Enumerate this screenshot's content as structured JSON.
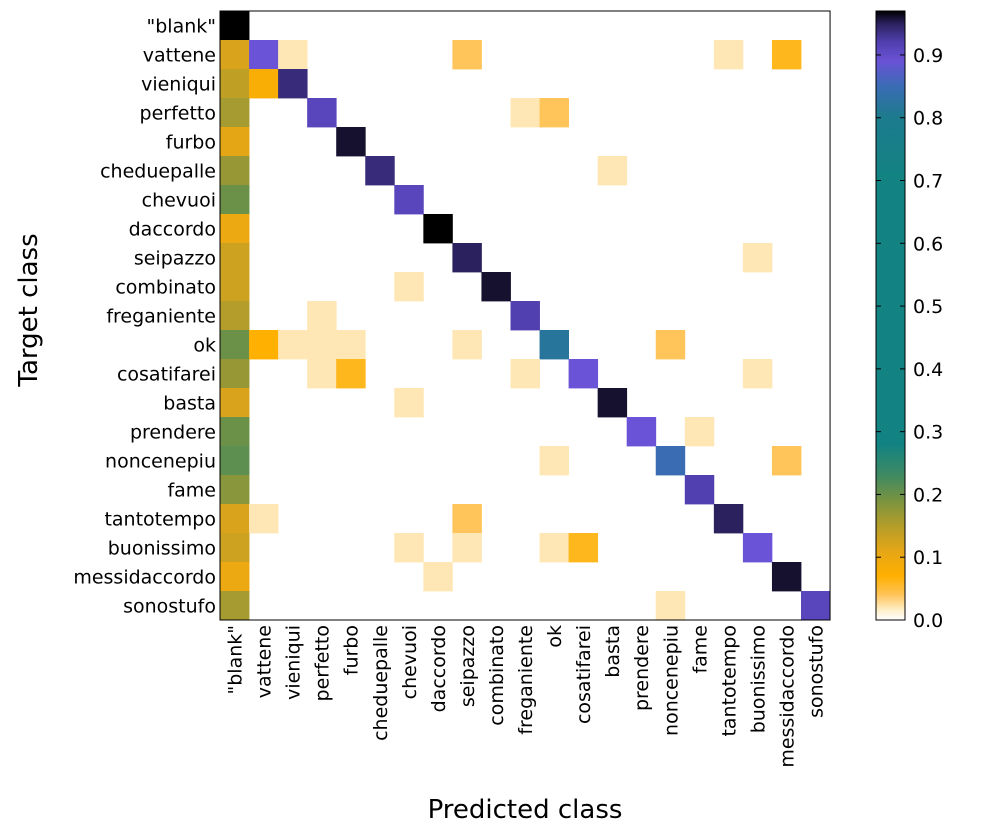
{
  "chart_data": {
    "type": "heatmap",
    "title": "",
    "xlabel": "Predicted class",
    "ylabel": "Target class",
    "categories": [
      "\"blank\"",
      "vattene",
      "vieniqui",
      "perfetto",
      "furbo",
      "cheduepalle",
      "chevuoi",
      "daccordo",
      "seipazzo",
      "combinato",
      "freganiente",
      "ok",
      "cosatifarei",
      "basta",
      "prendere",
      "noncenepiu",
      "fame",
      "tantotempo",
      "buonissimo",
      "messidaccordo",
      "sonostufo"
    ],
    "colorbar": {
      "range": [
        0.0,
        0.97
      ],
      "ticks": [
        0.0,
        0.1,
        0.2,
        0.3,
        0.4,
        0.5,
        0.6,
        0.7,
        0.8,
        0.9
      ],
      "tick_labels": [
        "0.0",
        "0.1",
        "0.2",
        "0.3",
        "0.4",
        "0.5",
        "0.6",
        "0.7",
        "0.8",
        "0.9"
      ],
      "placement": "right"
    },
    "colormap_stops": [
      {
        "v": 0.0,
        "color": "#ffffff"
      },
      {
        "v": 0.015,
        "color": "#fff0cc"
      },
      {
        "v": 0.04,
        "color": "#ffc45a"
      },
      {
        "v": 0.07,
        "color": "#ffb000"
      },
      {
        "v": 0.11,
        "color": "#e5a616"
      },
      {
        "v": 0.15,
        "color": "#b49d2a"
      },
      {
        "v": 0.19,
        "color": "#7a9340"
      },
      {
        "v": 0.23,
        "color": "#3f8a62"
      },
      {
        "v": 0.28,
        "color": "#128382"
      },
      {
        "v": 0.7,
        "color": "#128382"
      },
      {
        "v": 0.8,
        "color": "#1c7b8c"
      },
      {
        "v": 0.85,
        "color": "#3a6cb4"
      },
      {
        "v": 0.89,
        "color": "#6a53d6"
      },
      {
        "v": 0.92,
        "color": "#5140b0"
      },
      {
        "v": 0.95,
        "color": "#2b215e"
      },
      {
        "v": 0.97,
        "color": "#000000"
      }
    ],
    "matrix": [
      [
        0.97,
        0,
        0,
        0,
        0,
        0,
        0,
        0,
        0,
        0,
        0,
        0,
        0,
        0,
        0,
        0,
        0,
        0,
        0,
        0,
        0
      ],
      [
        0.12,
        0.89,
        0.02,
        0,
        0,
        0,
        0,
        0,
        0.04,
        0,
        0,
        0,
        0,
        0,
        0,
        0,
        0,
        0.02,
        0,
        0.06,
        0
      ],
      [
        0.14,
        0.08,
        0.94,
        0,
        0,
        0,
        0,
        0,
        0,
        0,
        0,
        0,
        0,
        0,
        0,
        0,
        0,
        0,
        0,
        0,
        0
      ],
      [
        0.16,
        0,
        0,
        0.91,
        0,
        0,
        0,
        0,
        0,
        0,
        0.02,
        0.04,
        0,
        0,
        0,
        0,
        0,
        0,
        0,
        0,
        0
      ],
      [
        0.11,
        0,
        0,
        0,
        0.96,
        0,
        0,
        0,
        0,
        0,
        0,
        0,
        0,
        0,
        0,
        0,
        0,
        0,
        0,
        0,
        0
      ],
      [
        0.17,
        0,
        0,
        0,
        0,
        0.94,
        0,
        0,
        0,
        0,
        0,
        0,
        0,
        0.02,
        0,
        0,
        0,
        0,
        0,
        0,
        0
      ],
      [
        0.2,
        0,
        0,
        0,
        0,
        0,
        0.91,
        0,
        0,
        0,
        0,
        0,
        0,
        0,
        0,
        0,
        0,
        0,
        0,
        0,
        0
      ],
      [
        0.1,
        0,
        0,
        0,
        0,
        0,
        0,
        0.97,
        0,
        0,
        0,
        0,
        0,
        0,
        0,
        0,
        0,
        0,
        0,
        0,
        0
      ],
      [
        0.13,
        0,
        0,
        0,
        0,
        0,
        0,
        0,
        0.95,
        0,
        0,
        0,
        0,
        0,
        0,
        0,
        0,
        0,
        0.02,
        0,
        0
      ],
      [
        0.13,
        0,
        0,
        0,
        0,
        0,
        0.02,
        0,
        0,
        0.96,
        0,
        0,
        0,
        0,
        0,
        0,
        0,
        0,
        0,
        0,
        0
      ],
      [
        0.15,
        0,
        0,
        0.02,
        0,
        0,
        0,
        0,
        0,
        0,
        0.92,
        0,
        0,
        0,
        0,
        0,
        0,
        0,
        0,
        0,
        0
      ],
      [
        0.2,
        0.07,
        0.02,
        0.02,
        0.02,
        0,
        0,
        0,
        0.02,
        0,
        0,
        0.82,
        0,
        0,
        0,
        0.04,
        0,
        0,
        0,
        0,
        0
      ],
      [
        0.17,
        0,
        0,
        0.02,
        0.06,
        0,
        0,
        0,
        0,
        0,
        0.02,
        0,
        0.89,
        0,
        0,
        0,
        0,
        0,
        0.02,
        0,
        0
      ],
      [
        0.12,
        0,
        0,
        0,
        0,
        0,
        0.02,
        0,
        0,
        0,
        0,
        0,
        0,
        0.96,
        0,
        0,
        0,
        0,
        0,
        0,
        0
      ],
      [
        0.2,
        0,
        0,
        0,
        0,
        0,
        0,
        0,
        0,
        0,
        0,
        0,
        0,
        0,
        0.89,
        0,
        0.02,
        0,
        0,
        0,
        0
      ],
      [
        0.21,
        0,
        0,
        0,
        0,
        0,
        0,
        0,
        0,
        0,
        0,
        0.02,
        0,
        0,
        0,
        0.85,
        0,
        0,
        0,
        0.04,
        0
      ],
      [
        0.18,
        0,
        0,
        0,
        0,
        0,
        0,
        0,
        0,
        0,
        0,
        0,
        0,
        0,
        0,
        0,
        0.92,
        0,
        0,
        0,
        0
      ],
      [
        0.12,
        0.02,
        0,
        0,
        0,
        0,
        0,
        0,
        0.04,
        0,
        0,
        0,
        0,
        0,
        0,
        0,
        0,
        0.95,
        0,
        0,
        0
      ],
      [
        0.13,
        0,
        0,
        0,
        0,
        0,
        0.02,
        0,
        0.02,
        0,
        0,
        0.02,
        0.06,
        0,
        0,
        0,
        0,
        0,
        0.89,
        0,
        0
      ],
      [
        0.1,
        0,
        0,
        0,
        0,
        0,
        0,
        0.02,
        0,
        0,
        0,
        0,
        0,
        0,
        0,
        0,
        0,
        0,
        0,
        0.96,
        0
      ],
      [
        0.16,
        0,
        0,
        0,
        0,
        0,
        0,
        0,
        0,
        0,
        0,
        0,
        0,
        0,
        0,
        0.02,
        0,
        0,
        0,
        0,
        0.91
      ]
    ]
  }
}
